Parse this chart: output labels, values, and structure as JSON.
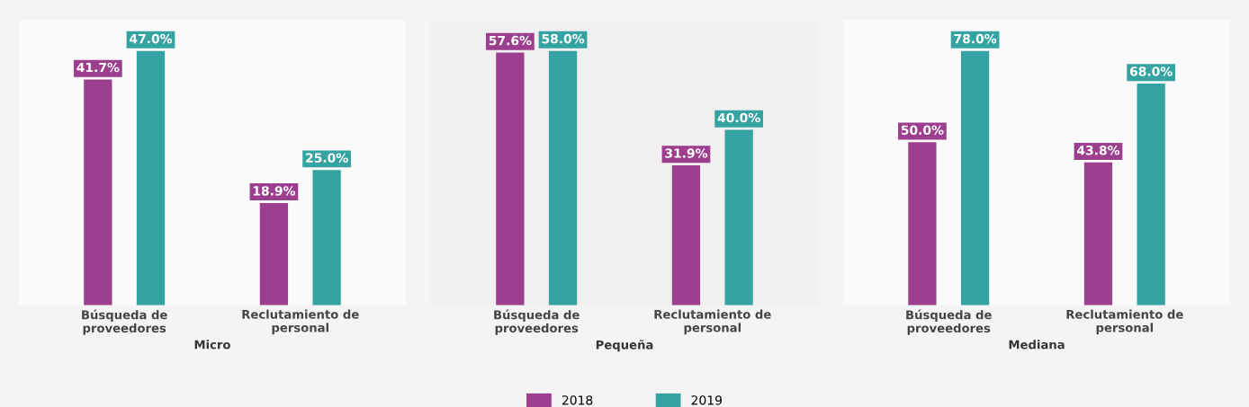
{
  "chart_data": [
    {
      "type": "bar",
      "xlabel": "Micro",
      "categories": [
        "Búsqueda de\nproveedores",
        "Reclutamiento de\npersonal"
      ],
      "tick_labels": "x",
      "grid": false,
      "series": [
        {
          "color": "#9c3f8e",
          "values": [
            41.7,
            18.9
          ],
          "value_labels": [
            "41.7%",
            "18.9%"
          ]
        },
        {
          "color": "#35a3a1",
          "values": [
            47.0,
            25.0
          ],
          "value_labels": [
            "47.0%",
            "25.0%"
          ]
        }
      ]
    },
    {
      "type": "bar",
      "xlabel": "Pequeña",
      "categories": [
        "Búsqueda de\nproveedores",
        "Reclutamiento de\npersonal"
      ],
      "tick_labels": "x",
      "grid": false,
      "legend": "bottom",
      "series": [
        {
          "name": "2018",
          "color": "#9c3f8e",
          "values": [
            57.6,
            31.9
          ],
          "value_labels": [
            "57.6%",
            "31.9%"
          ]
        },
        {
          "name": "2019",
          "color": "#35a3a1",
          "values": [
            58.0,
            40.0
          ],
          "value_labels": [
            "58.0%",
            "40.0%"
          ]
        }
      ]
    },
    {
      "type": "bar",
      "xlabel": "Mediana",
      "categories": [
        "Búsqueda de\nproveedores",
        "Reclutamiento de\npersonal"
      ],
      "tick_labels": "x",
      "grid": false,
      "series": [
        {
          "color": "#9c3f8e",
          "values": [
            50.0,
            43.8
          ],
          "value_labels": [
            "50.0%",
            "43.8%"
          ]
        },
        {
          "color": "#35a3a1",
          "values": [
            78.0,
            68.0
          ],
          "value_labels": [
            "78.0%",
            "68.0%"
          ]
        }
      ]
    }
  ]
}
